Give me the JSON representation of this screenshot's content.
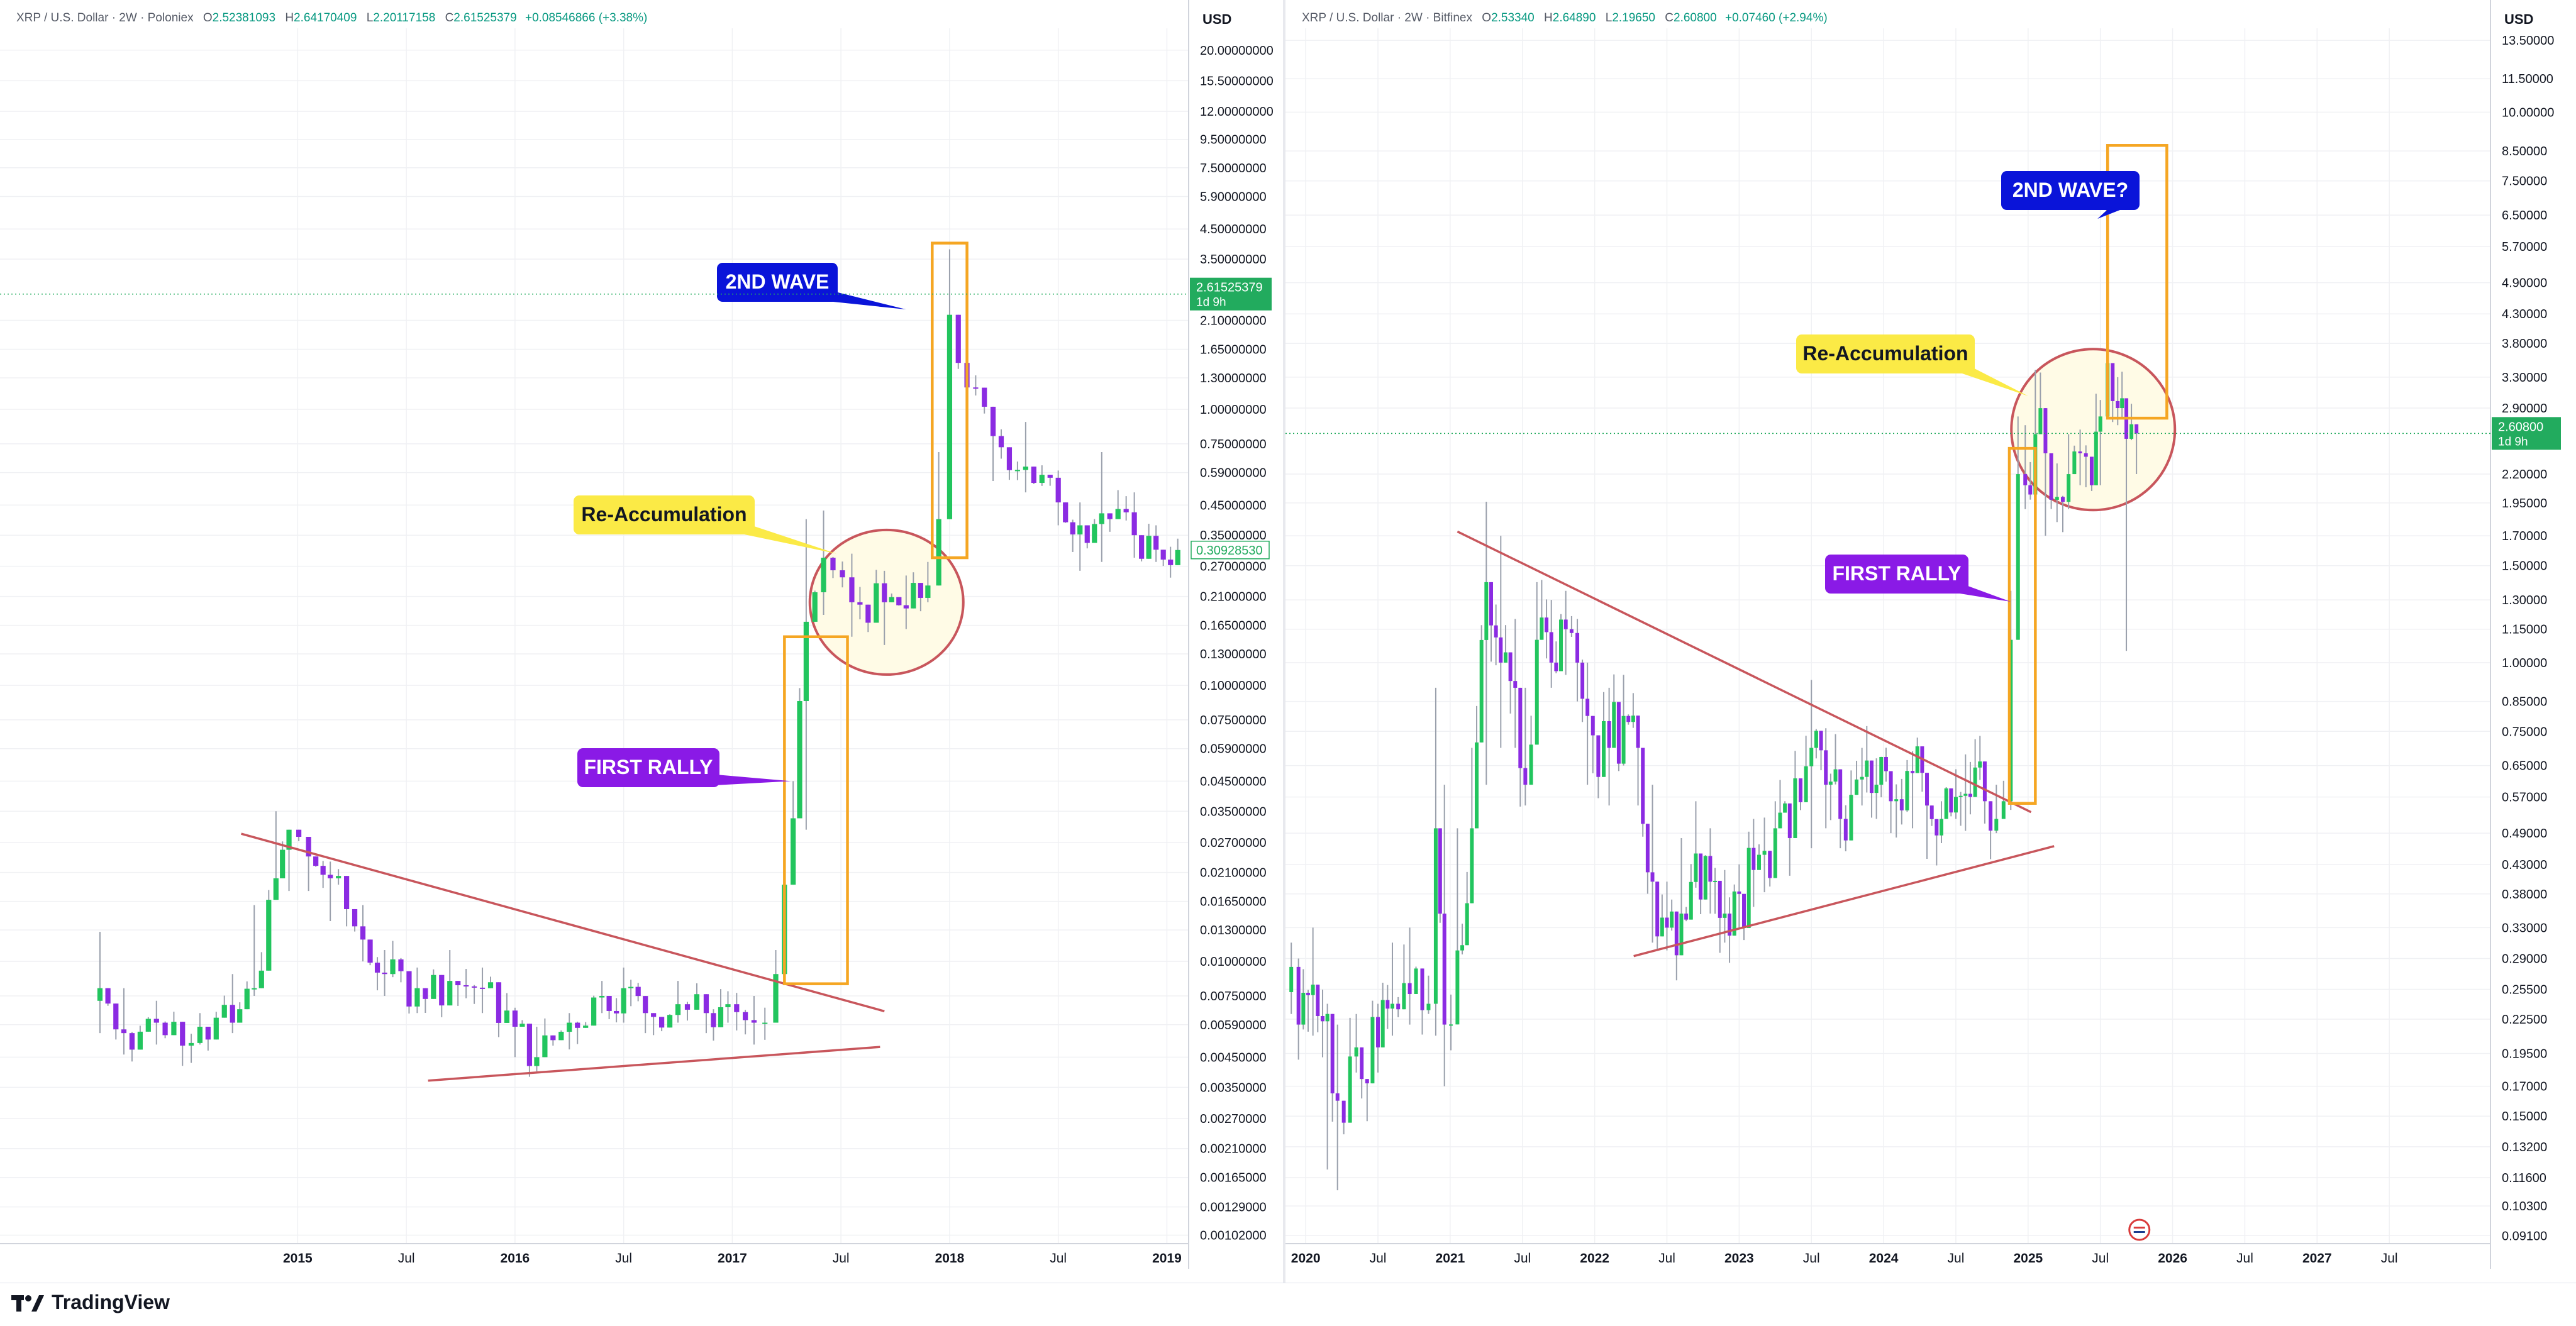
{
  "colors": {
    "up": "#22c55e",
    "down": "#8b2be2",
    "wick": "#9aa0ac",
    "trendline": "#c8565c",
    "box": "#f5a623",
    "circle": "#c8565c",
    "circle_fill": "#fffbe6",
    "badge_price": "#22ab5e",
    "callout_blue": "#0a14d9",
    "callout_purple": "#8a1ae6",
    "callout_yellow": "#fbea46"
  },
  "footer": {
    "brand": "TradingView"
  },
  "panels": [
    {
      "id": "left",
      "legend": {
        "symbol": "XRP / U.S. Dollar · 2W · Poloniex",
        "o_label": "O",
        "o": "2.52381093",
        "h_label": "H",
        "h": "2.64170409",
        "l_label": "L",
        "l": "2.20117158",
        "c_label": "C",
        "c": "2.61525379",
        "change": "+0.08546866 (+3.38%)"
      },
      "axis_currency": "USD",
      "price_badge": {
        "value": "2.61525379",
        "sub": "1d 9h",
        "price": 2.615
      },
      "secondary_badge": {
        "value": "0.30928530",
        "price": 0.3093
      },
      "callouts": {
        "wave": "2ND WAVE",
        "reacc": "Re-Accumulation",
        "rally": "FIRST RALLY"
      },
      "chart_data": {
        "type": "candlestick",
        "scale": "log",
        "ylim": [
          0.00095,
          24.0
        ],
        "y_ticks": [
          "20.00000000",
          "15.50000000",
          "12.00000000",
          "9.50000000",
          "7.50000000",
          "5.90000000",
          "4.50000000",
          "3.50000000",
          "2.10000000",
          "1.65000000",
          "1.30000000",
          "1.00000000",
          "0.75000000",
          "0.59000000",
          "0.45000000",
          "0.35000000",
          "0.27000000",
          "0.21000000",
          "0.16500000",
          "0.13000000",
          "0.10000000",
          "0.07500000",
          "0.05900000",
          "0.04500000",
          "0.03500000",
          "0.02700000",
          "0.02100000",
          "0.01650000",
          "0.01300000",
          "0.01000000",
          "0.00750000",
          "0.00590000",
          "0.00450000",
          "0.00350000",
          "0.00270000",
          "0.00210000",
          "0.00165000",
          "0.00129000",
          "0.00102000"
        ],
        "x_ticks": [
          {
            "label": "2015",
            "t": 2015.0,
            "bold": true
          },
          {
            "label": "Jul",
            "t": 2015.5,
            "bold": false
          },
          {
            "label": "2016",
            "t": 2016.0,
            "bold": true
          },
          {
            "label": "Jul",
            "t": 2016.5,
            "bold": false
          },
          {
            "label": "2017",
            "t": 2017.0,
            "bold": true
          },
          {
            "label": "Jul",
            "t": 2017.5,
            "bold": false
          },
          {
            "label": "2018",
            "t": 2018.0,
            "bold": true
          },
          {
            "label": "Jul",
            "t": 2018.5,
            "bold": false
          },
          {
            "label": "2019",
            "t": 2019.0,
            "bold": true
          }
        ],
        "xlim": [
          2013.63,
          2019.1
        ],
        "anchors": [
          [
            2014.09,
            0.008,
            0.0128,
            0.0055
          ],
          [
            2014.2,
            0.0055,
            0.008,
            0.0046
          ],
          [
            2014.35,
            0.006,
            0.0072,
            0.005
          ],
          [
            2014.55,
            0.0058,
            0.0065,
            0.005
          ],
          [
            2014.7,
            0.006,
            0.009,
            0.0055
          ],
          [
            2014.8,
            0.008,
            0.016,
            0.0075
          ],
          [
            2014.9,
            0.02,
            0.035,
            0.017
          ],
          [
            2014.96,
            0.03,
            0.028,
            0.018
          ],
          [
            2015.05,
            0.024,
            0.028,
            0.018
          ],
          [
            2015.15,
            0.02,
            0.023,
            0.014
          ],
          [
            2015.3,
            0.012,
            0.016,
            0.01
          ],
          [
            2015.4,
            0.009,
            0.011,
            0.0075
          ],
          [
            2015.55,
            0.008,
            0.0095,
            0.0065
          ],
          [
            2015.7,
            0.0085,
            0.011,
            0.007
          ],
          [
            2015.85,
            0.008,
            0.0095,
            0.0065
          ],
          [
            2016.0,
            0.0058,
            0.0068,
            0.0045
          ],
          [
            2016.1,
            0.0045,
            0.0058,
            0.004
          ],
          [
            2016.25,
            0.006,
            0.0065,
            0.0048
          ],
          [
            2016.4,
            0.0075,
            0.0085,
            0.0065
          ],
          [
            2016.5,
            0.008,
            0.0095,
            0.006
          ],
          [
            2016.6,
            0.0065,
            0.0075,
            0.0055
          ],
          [
            2016.75,
            0.007,
            0.0085,
            0.006
          ],
          [
            2016.88,
            0.0065,
            0.0072,
            0.0055
          ],
          [
            2016.98,
            0.007,
            0.0078,
            0.006
          ],
          [
            2017.1,
            0.006,
            0.0075,
            0.005
          ],
          [
            2017.15,
            0.006,
            0.0068,
            0.0052
          ],
          [
            2017.2,
            0.009,
            0.011,
            0.006
          ],
          [
            2017.28,
            0.033,
            0.045,
            0.02
          ],
          [
            2017.34,
            0.17,
            0.4,
            0.03
          ],
          [
            2017.42,
            0.29,
            0.43,
            0.18
          ],
          [
            2017.55,
            0.2,
            0.3,
            0.15
          ],
          [
            2017.7,
            0.2,
            0.26,
            0.14
          ],
          [
            2017.8,
            0.19,
            0.25,
            0.16
          ],
          [
            2017.9,
            0.23,
            0.28,
            0.2
          ],
          [
            2017.95,
            0.4,
            0.7,
            0.23
          ],
          [
            2018.0,
            2.2,
            3.8,
            1.2
          ],
          [
            2018.08,
            1.2,
            1.6,
            0.9
          ],
          [
            2018.2,
            0.8,
            1.0,
            0.55
          ],
          [
            2018.35,
            0.62,
            0.9,
            0.5
          ],
          [
            2018.5,
            0.46,
            0.6,
            0.38
          ],
          [
            2018.6,
            0.38,
            0.46,
            0.26
          ],
          [
            2018.7,
            0.42,
            0.7,
            0.28
          ],
          [
            2018.85,
            0.35,
            0.5,
            0.29
          ],
          [
            2018.95,
            0.31,
            0.38,
            0.28
          ],
          [
            2019.05,
            0.3093,
            0.34,
            0.29
          ]
        ]
      }
    },
    {
      "id": "right",
      "legend": {
        "symbol": "XRP / U.S. Dollar · 2W · Bitfinex",
        "o_label": "O",
        "o": "2.53340",
        "h_label": "H",
        "h": "2.64890",
        "l_label": "L",
        "l": "2.19650",
        "c_label": "C",
        "c": "2.60800",
        "change": "+0.07460 (+2.94%)"
      },
      "axis_currency": "USD",
      "price_badge": {
        "value": "2.60800",
        "sub": "1d 9h",
        "price": 2.608
      },
      "callouts": {
        "wave": "2ND WAVE?",
        "reacc": "Re-Accumulation",
        "rally": "FIRST RALLY"
      },
      "chart_data": {
        "type": "candlestick",
        "scale": "log",
        "ylim": [
          0.088,
          14.2
        ],
        "y_ticks": [
          "13.50000",
          "11.50000",
          "10.00000",
          "8.50000",
          "7.50000",
          "6.50000",
          "5.70000",
          "4.90000",
          "4.30000",
          "3.80000",
          "3.30000",
          "2.90000",
          "2.20000",
          "1.95000",
          "1.70000",
          "1.50000",
          "1.30000",
          "1.15000",
          "1.00000",
          "0.85000",
          "0.75000",
          "0.65000",
          "0.57000",
          "0.49000",
          "0.43000",
          "0.38000",
          "0.33000",
          "0.29000",
          "0.25500",
          "0.22500",
          "0.19500",
          "0.17000",
          "0.15000",
          "0.13200",
          "0.11600",
          "0.10300",
          "0.09100"
        ],
        "x_ticks": [
          {
            "label": "2020",
            "t": 2020.0,
            "bold": true
          },
          {
            "label": "Jul",
            "t": 2020.5,
            "bold": false
          },
          {
            "label": "2021",
            "t": 2021.0,
            "bold": true
          },
          {
            "label": "Jul",
            "t": 2021.5,
            "bold": false
          },
          {
            "label": "2022",
            "t": 2022.0,
            "bold": true
          },
          {
            "label": "Jul",
            "t": 2022.5,
            "bold": false
          },
          {
            "label": "2023",
            "t": 2023.0,
            "bold": true
          },
          {
            "label": "Jul",
            "t": 2023.5,
            "bold": false
          },
          {
            "label": "2024",
            "t": 2024.0,
            "bold": true
          },
          {
            "label": "Jul",
            "t": 2024.5,
            "bold": false
          },
          {
            "label": "2025",
            "t": 2025.0,
            "bold": true
          },
          {
            "label": "Jul",
            "t": 2025.5,
            "bold": false
          },
          {
            "label": "2026",
            "t": 2026.0,
            "bold": true
          },
          {
            "label": "Jul",
            "t": 2026.5,
            "bold": false
          },
          {
            "label": "2027",
            "t": 2027.0,
            "bold": true
          },
          {
            "label": "Jul",
            "t": 2027.5,
            "bold": false
          }
        ],
        "xlim": [
          2019.86,
          2028.2
        ],
        "anchors": [
          [
            2019.9,
            0.28,
            0.31,
            0.23
          ],
          [
            2019.95,
            0.22,
            0.29,
            0.19
          ],
          [
            2020.05,
            0.26,
            0.33,
            0.21
          ],
          [
            2020.15,
            0.23,
            0.24,
            0.12
          ],
          [
            2020.22,
            0.16,
            0.22,
            0.11
          ],
          [
            2020.35,
            0.2,
            0.23,
            0.18
          ],
          [
            2020.5,
            0.2,
            0.24,
            0.18
          ],
          [
            2020.6,
            0.24,
            0.31,
            0.21
          ],
          [
            2020.72,
            0.25,
            0.33,
            0.22
          ],
          [
            2020.85,
            0.24,
            0.27,
            0.23
          ],
          [
            2020.9,
            0.5,
            0.9,
            0.21
          ],
          [
            2020.96,
            0.22,
            0.6,
            0.17
          ],
          [
            2021.05,
            0.3,
            0.5,
            0.25
          ],
          [
            2021.15,
            0.5,
            0.7,
            0.4
          ],
          [
            2021.25,
            1.4,
            1.96,
            0.6
          ],
          [
            2021.35,
            1.0,
            1.7,
            0.7
          ],
          [
            2021.45,
            0.9,
            1.2,
            0.7
          ],
          [
            2021.52,
            0.6,
            0.9,
            0.55
          ],
          [
            2021.6,
            1.1,
            1.4,
            0.8
          ],
          [
            2021.7,
            1.0,
            1.3,
            0.9
          ],
          [
            2021.8,
            1.15,
            1.35,
            0.95
          ],
          [
            2021.88,
            1.0,
            1.2,
            0.85
          ],
          [
            2021.95,
            0.8,
            1.0,
            0.6
          ],
          [
            2022.1,
            0.7,
            0.9,
            0.55
          ],
          [
            2022.2,
            0.8,
            0.95,
            0.65
          ],
          [
            2022.3,
            0.7,
            0.8,
            0.55
          ],
          [
            2022.4,
            0.4,
            0.6,
            0.31
          ],
          [
            2022.5,
            0.33,
            0.4,
            0.3
          ],
          [
            2022.6,
            0.35,
            0.48,
            0.32
          ],
          [
            2022.7,
            0.45,
            0.56,
            0.39
          ],
          [
            2022.8,
            0.4,
            0.5,
            0.35
          ],
          [
            2022.9,
            0.35,
            0.42,
            0.31
          ],
          [
            2023.0,
            0.38,
            0.43,
            0.33
          ],
          [
            2023.1,
            0.42,
            0.52,
            0.36
          ],
          [
            2023.25,
            0.5,
            0.56,
            0.43
          ],
          [
            2023.35,
            0.48,
            0.52,
            0.41
          ],
          [
            2023.5,
            0.7,
            0.93,
            0.46
          ],
          [
            2023.6,
            0.6,
            0.76,
            0.5
          ],
          [
            2023.7,
            0.52,
            0.6,
            0.46
          ],
          [
            2023.85,
            0.62,
            0.7,
            0.55
          ],
          [
            2023.95,
            0.6,
            0.67,
            0.52
          ],
          [
            2024.05,
            0.56,
            0.62,
            0.49
          ],
          [
            2024.2,
            0.63,
            0.69,
            0.5
          ],
          [
            2024.3,
            0.55,
            0.6,
            0.44
          ],
          [
            2024.4,
            0.52,
            0.56,
            0.47
          ],
          [
            2024.5,
            0.57,
            0.64,
            0.52
          ],
          [
            2024.6,
            0.57,
            0.66,
            0.53
          ],
          [
            2024.7,
            0.56,
            0.61,
            0.51
          ],
          [
            2024.78,
            0.52,
            0.6,
            0.49
          ],
          [
            2024.83,
            0.56,
            0.61,
            0.54
          ],
          [
            2024.88,
            1.1,
            1.35,
            0.54
          ],
          [
            2024.93,
            2.2,
            2.8,
            1.1
          ],
          [
            2024.98,
            2.1,
            2.7,
            1.9
          ],
          [
            2025.05,
            2.6,
            3.4,
            2.0
          ],
          [
            2025.12,
            2.4,
            2.9,
            1.7
          ],
          [
            2025.2,
            2.0,
            2.3,
            1.8
          ],
          [
            2025.28,
            2.2,
            2.6,
            1.9
          ],
          [
            2025.36,
            2.4,
            2.65,
            2.1
          ],
          [
            2025.44,
            2.1,
            2.3,
            2.05
          ],
          [
            2025.5,
            2.8,
            3.0,
            2.1
          ],
          [
            2025.55,
            3.5,
            3.66,
            2.9
          ],
          [
            2025.62,
            2.9,
            3.3,
            2.7
          ],
          [
            2025.68,
            2.55,
            2.9,
            1.05
          ],
          [
            2025.75,
            2.608,
            2.65,
            2.2
          ]
        ]
      }
    }
  ]
}
